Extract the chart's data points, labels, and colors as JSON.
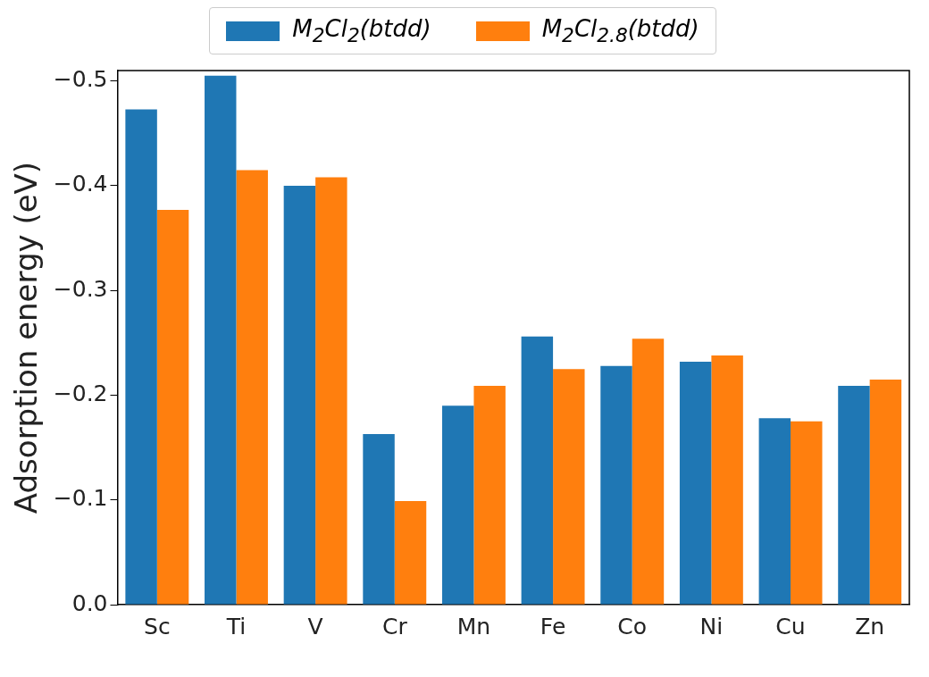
{
  "chart_data": {
    "type": "bar",
    "ylabel": "Adsorption energy (eV)",
    "categories": [
      "Sc",
      "Ti",
      "V",
      "Cr",
      "Mn",
      "Fe",
      "Co",
      "Ni",
      "Cu",
      "Zn"
    ],
    "series": [
      {
        "name": "M$_{2}$Cl$_{2}$(btdd)",
        "color": "#1f77b4",
        "values": [
          -0.473,
          -0.505,
          -0.4,
          -0.163,
          -0.19,
          -0.256,
          -0.228,
          -0.232,
          -0.178,
          -0.209
        ]
      },
      {
        "name": "M$_{2}$Cl$_{2.8}$(btdd)",
        "color": "#ff7f0e",
        "values": [
          -0.377,
          -0.415,
          -0.408,
          -0.099,
          -0.209,
          -0.225,
          -0.254,
          -0.238,
          -0.175,
          -0.215
        ]
      }
    ],
    "ylim": [
      0,
      -0.51
    ],
    "yticks": [
      {
        "value": 0,
        "label": "0.0"
      },
      {
        "value": -0.1,
        "label": "−0.1"
      },
      {
        "value": -0.2,
        "label": "−0.2"
      },
      {
        "value": -0.3,
        "label": "−0.3"
      },
      {
        "value": -0.4,
        "label": "−0.4"
      },
      {
        "value": -0.5,
        "label": "−0.5"
      }
    ],
    "grid": false,
    "legend": "top"
  }
}
